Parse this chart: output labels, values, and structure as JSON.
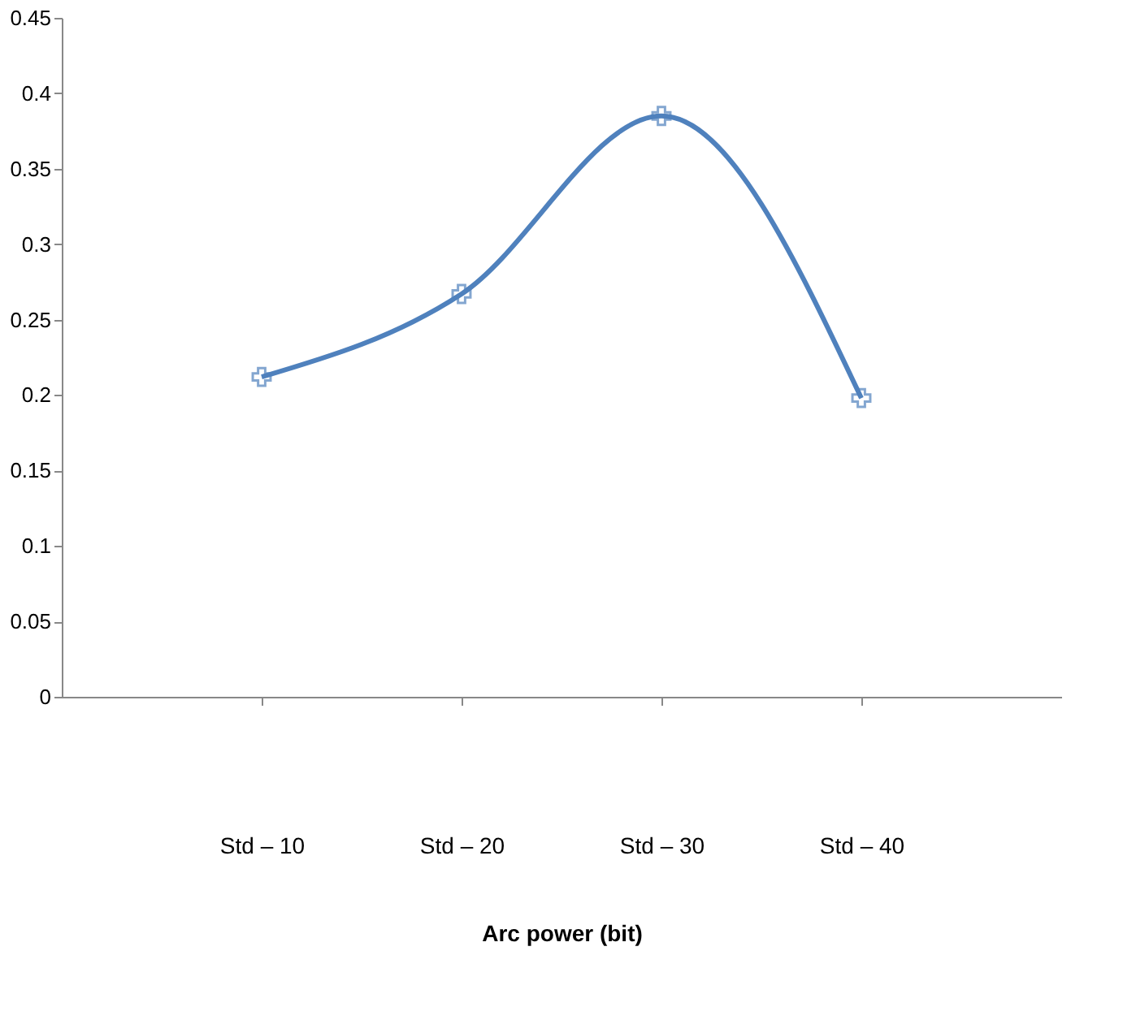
{
  "chart_data": {
    "type": "line",
    "xlabel": "Arc power (bit)",
    "categories": [
      "Std – 10",
      "Std – 20",
      "Std – 30",
      "Std – 40"
    ],
    "series": [
      {
        "color": "#4f81bd",
        "values": [
          0.212,
          0.267,
          0.385,
          0.198
        ]
      }
    ],
    "ylim": [
      0,
      0.45
    ],
    "yticks": [
      0,
      0.05,
      0.1,
      0.15,
      0.2,
      0.25,
      0.3,
      0.35,
      0.4,
      0.45
    ],
    "grid": false,
    "marker": "cross",
    "line_style": "solid"
  }
}
